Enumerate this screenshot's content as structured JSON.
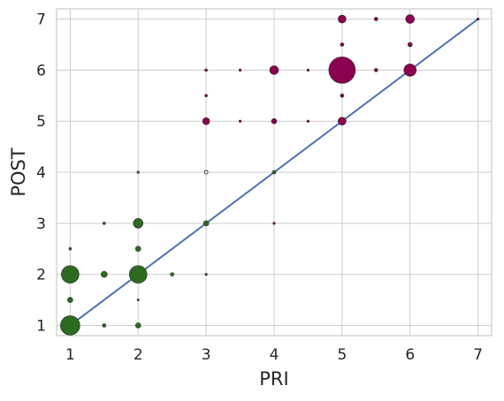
{
  "chart_data": {
    "type": "scatter",
    "xlabel": "PRI",
    "ylabel": "POST",
    "xlim": [
      0.8,
      7.2
    ],
    "ylim": [
      0.8,
      7.2
    ],
    "xticks": [
      1,
      2,
      3,
      4,
      5,
      6,
      7
    ],
    "yticks": [
      1,
      2,
      3,
      4,
      5,
      6,
      7
    ],
    "grid": true,
    "colors": {
      "below_or_equal": "#2b6a1f",
      "above": "#8c0050",
      "equal_open": "#ffffff",
      "reference_line": "#4c72b0",
      "grid": "#cccccc",
      "spine": "#cccccc"
    },
    "reference_line": {
      "from": [
        1,
        1
      ],
      "to": [
        7,
        7
      ]
    },
    "points": [
      {
        "x": 1,
        "y": 1,
        "r": 11,
        "group": "below_or_equal"
      },
      {
        "x": 1,
        "y": 1.5,
        "r": 3,
        "group": "below_or_equal"
      },
      {
        "x": 1,
        "y": 2,
        "r": 10,
        "group": "below_or_equal"
      },
      {
        "x": 1,
        "y": 2.5,
        "r": 1.5,
        "group": "below_or_equal"
      },
      {
        "x": 1.5,
        "y": 1,
        "r": 2,
        "group": "below_or_equal"
      },
      {
        "x": 1.5,
        "y": 2,
        "r": 3.5,
        "group": "below_or_equal"
      },
      {
        "x": 1.5,
        "y": 3,
        "r": 1.5,
        "group": "below_or_equal"
      },
      {
        "x": 2,
        "y": 1,
        "r": 3,
        "group": "below_or_equal"
      },
      {
        "x": 2,
        "y": 1.5,
        "r": 1.2,
        "group": "below_or_equal"
      },
      {
        "x": 2,
        "y": 2,
        "r": 10,
        "group": "below_or_equal"
      },
      {
        "x": 2,
        "y": 2.5,
        "r": 3,
        "group": "below_or_equal"
      },
      {
        "x": 2,
        "y": 3,
        "r": 5.5,
        "group": "below_or_equal"
      },
      {
        "x": 2,
        "y": 4,
        "r": 1.3,
        "group": "below_or_equal"
      },
      {
        "x": 2.5,
        "y": 2,
        "r": 2,
        "group": "below_or_equal"
      },
      {
        "x": 3,
        "y": 2,
        "r": 1.3,
        "group": "below_or_equal"
      },
      {
        "x": 3,
        "y": 3,
        "r": 3,
        "group": "below_or_equal"
      },
      {
        "x": 3,
        "y": 4,
        "r": 2,
        "group": "equal_open"
      },
      {
        "x": 3,
        "y": 5,
        "r": 4,
        "group": "above"
      },
      {
        "x": 3,
        "y": 5.5,
        "r": 1.5,
        "group": "above"
      },
      {
        "x": 3,
        "y": 6,
        "r": 1.5,
        "group": "above"
      },
      {
        "x": 3.5,
        "y": 5,
        "r": 1.3,
        "group": "above"
      },
      {
        "x": 3.5,
        "y": 6,
        "r": 1.3,
        "group": "above"
      },
      {
        "x": 4,
        "y": 3,
        "r": 1.3,
        "group": "above"
      },
      {
        "x": 4,
        "y": 4,
        "r": 2,
        "group": "below_or_equal"
      },
      {
        "x": 4,
        "y": 5,
        "r": 3,
        "group": "above"
      },
      {
        "x": 4,
        "y": 6,
        "r": 5,
        "group": "above"
      },
      {
        "x": 4.5,
        "y": 5,
        "r": 1.3,
        "group": "above"
      },
      {
        "x": 4.5,
        "y": 6,
        "r": 1.3,
        "group": "above"
      },
      {
        "x": 5,
        "y": 5,
        "r": 4.5,
        "group": "above"
      },
      {
        "x": 5,
        "y": 5.5,
        "r": 2,
        "group": "above"
      },
      {
        "x": 5,
        "y": 6,
        "r": 15,
        "group": "above"
      },
      {
        "x": 5,
        "y": 6.5,
        "r": 2,
        "group": "above"
      },
      {
        "x": 5,
        "y": 7,
        "r": 4.5,
        "group": "above"
      },
      {
        "x": 5.5,
        "y": 6,
        "r": 2,
        "group": "above"
      },
      {
        "x": 5.5,
        "y": 7,
        "r": 2,
        "group": "above"
      },
      {
        "x": 6,
        "y": 6,
        "r": 7,
        "group": "above"
      },
      {
        "x": 6,
        "y": 6.5,
        "r": 2.5,
        "group": "above"
      },
      {
        "x": 6,
        "y": 7,
        "r": 5,
        "group": "above"
      },
      {
        "x": 7,
        "y": 7,
        "r": 1.3,
        "group": "above"
      }
    ]
  }
}
